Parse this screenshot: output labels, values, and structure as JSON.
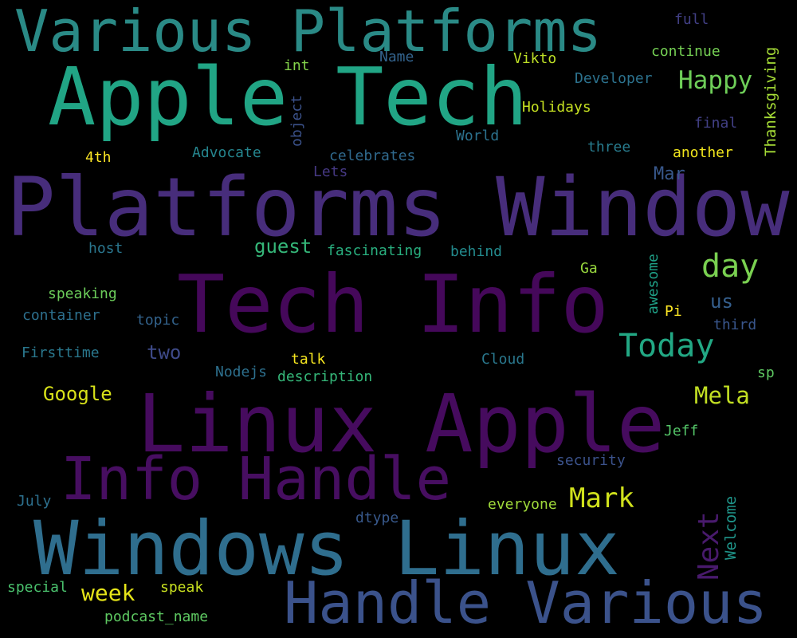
{
  "words": [
    {
      "text": "Various Platforms",
      "color": "#2a8a86"
    },
    {
      "text": "Apple Tech",
      "color": "#21a585"
    },
    {
      "text": "Platforms Windows",
      "color": "#472d7b"
    },
    {
      "text": "Tech Info",
      "color": "#45085a"
    },
    {
      "text": "Linux Apple",
      "color": "#460b5e"
    },
    {
      "text": "Info Handle",
      "color": "#470e61"
    },
    {
      "text": "Windows Linux",
      "color": "#2f6e8e"
    },
    {
      "text": "Handle Various",
      "color": "#3b528b"
    },
    {
      "text": "day",
      "color": "#7ad151"
    },
    {
      "text": "Today",
      "color": "#22a884"
    },
    {
      "text": "Happy",
      "color": "#6ece58"
    },
    {
      "text": "Mark",
      "color": "#d0e11c"
    },
    {
      "text": "Mela",
      "color": "#c2df23"
    },
    {
      "text": "week",
      "color": "#e5e419"
    },
    {
      "text": "Google",
      "color": "#d8e219"
    },
    {
      "text": "two",
      "color": "#3e4a89"
    },
    {
      "text": "guest",
      "color": "#35b779"
    },
    {
      "text": "Mar",
      "color": "#38588c"
    },
    {
      "text": "us",
      "color": "#355f8d"
    },
    {
      "text": "Next",
      "color": "#481a6c"
    },
    {
      "text": "Welcome",
      "color": "#1f968b"
    },
    {
      "text": "Thanksgiving",
      "color": "#a5db36"
    },
    {
      "text": "awesome",
      "color": "#1fa187"
    },
    {
      "text": "object",
      "color": "#3b528b"
    },
    {
      "text": "full",
      "color": "#424086"
    },
    {
      "text": "Name",
      "color": "#33638d"
    },
    {
      "text": "Vikto",
      "color": "#bddf26"
    },
    {
      "text": "continue",
      "color": "#75d054"
    },
    {
      "text": "int",
      "color": "#84d44b"
    },
    {
      "text": "Developer",
      "color": "#2c728e"
    },
    {
      "text": "Holidays",
      "color": "#c5e021"
    },
    {
      "text": "final",
      "color": "#424086"
    },
    {
      "text": "World",
      "color": "#2c728e"
    },
    {
      "text": "three",
      "color": "#287c8e"
    },
    {
      "text": "another",
      "color": "#f1e51d"
    },
    {
      "text": "4th",
      "color": "#fde725"
    },
    {
      "text": "Advocate",
      "color": "#25858e"
    },
    {
      "text": "celebrates",
      "color": "#306a8e"
    },
    {
      "text": "Lets",
      "color": "#453882"
    },
    {
      "text": "host",
      "color": "#2a768e"
    },
    {
      "text": "fascinating",
      "color": "#29af7f"
    },
    {
      "text": "behind",
      "color": "#238a8d"
    },
    {
      "text": "Ga",
      "color": "#98d83e"
    },
    {
      "text": "speaking",
      "color": "#6ccd5a"
    },
    {
      "text": "container",
      "color": "#2d708e"
    },
    {
      "text": "topic",
      "color": "#33638d"
    },
    {
      "text": "Pi",
      "color": "#fde725"
    },
    {
      "text": "third",
      "color": "#39568c"
    },
    {
      "text": "Firsttime",
      "color": "#2a788e"
    },
    {
      "text": "talk",
      "color": "#f6e620"
    },
    {
      "text": "Cloud",
      "color": "#2a788e"
    },
    {
      "text": "Nodejs",
      "color": "#2d708e"
    },
    {
      "text": "description",
      "color": "#35b779"
    },
    {
      "text": "sp",
      "color": "#5ec962"
    },
    {
      "text": "Jeff",
      "color": "#54c568"
    },
    {
      "text": "security",
      "color": "#3b528b"
    },
    {
      "text": "July",
      "color": "#2d708e"
    },
    {
      "text": "everyone",
      "color": "#9fda3a"
    },
    {
      "text": "dtype",
      "color": "#38598c"
    },
    {
      "text": "special",
      "color": "#4ac16d"
    },
    {
      "text": "speak",
      "color": "#c8e020"
    },
    {
      "text": "podcast_name",
      "color": "#5ec962"
    }
  ]
}
